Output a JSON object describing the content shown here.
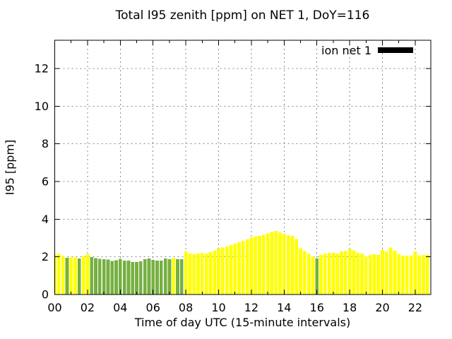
{
  "colors": {
    "bar_yellow": "#ffff00",
    "bar_green": "#76b041",
    "legend_swatch": "#000000",
    "grid": "#8a8a8a",
    "border": "#000000",
    "background": "#ffffff",
    "text": "#000000"
  },
  "chart_data": {
    "type": "bar",
    "title": "Total I95 zenith [ppm] on NET 1, DoY=116",
    "xlabel": "Time of day UTC (15-minute intervals)",
    "ylabel": "I95 [ppm]",
    "legend_label": "ion net 1",
    "legend_position": "top-right",
    "grid": true,
    "ylim": [
      0,
      13.5
    ],
    "yticks": [
      "0",
      "2",
      "4",
      "6",
      "8",
      "10",
      "12"
    ],
    "xticks": [
      "00",
      "02",
      "04",
      "06",
      "08",
      "10",
      "12",
      "14",
      "16",
      "18",
      "20",
      "22"
    ],
    "interval_minutes": 15,
    "times": [
      "00:00",
      "00:15",
      "00:30",
      "00:45",
      "01:00",
      "01:15",
      "01:30",
      "01:45",
      "02:00",
      "02:15",
      "02:30",
      "02:45",
      "03:00",
      "03:15",
      "03:30",
      "03:45",
      "04:00",
      "04:15",
      "04:30",
      "04:45",
      "05:00",
      "05:15",
      "05:30",
      "05:45",
      "06:00",
      "06:15",
      "06:30",
      "06:45",
      "07:00",
      "07:15",
      "07:30",
      "07:45",
      "08:00",
      "08:15",
      "08:30",
      "08:45",
      "09:00",
      "09:15",
      "09:30",
      "09:45",
      "10:00",
      "10:15",
      "10:30",
      "10:45",
      "11:00",
      "11:15",
      "11:30",
      "11:45",
      "12:00",
      "12:15",
      "12:30",
      "12:45",
      "13:00",
      "13:15",
      "13:30",
      "13:45",
      "14:00",
      "14:15",
      "14:30",
      "14:45",
      "15:00",
      "15:15",
      "15:30",
      "15:45",
      "16:00",
      "16:15",
      "16:30",
      "16:45",
      "17:00",
      "17:15",
      "17:30",
      "17:45",
      "18:00",
      "18:15",
      "18:30",
      "18:45",
      "19:00",
      "19:15",
      "19:30",
      "19:45",
      "20:00",
      "20:15",
      "20:30",
      "20:45",
      "21:00",
      "21:15",
      "21:30",
      "21:45",
      "22:00",
      "22:15",
      "22:30",
      "22:45"
    ],
    "values": [
      2.1,
      2.15,
      2.06,
      1.95,
      1.97,
      1.97,
      1.92,
      2.05,
      2.14,
      1.98,
      1.94,
      1.9,
      1.88,
      1.85,
      1.78,
      1.82,
      1.9,
      1.8,
      1.8,
      1.72,
      1.72,
      1.76,
      1.87,
      1.91,
      1.84,
      1.8,
      1.8,
      1.91,
      1.87,
      1.95,
      1.87,
      1.88,
      2.28,
      2.18,
      2.13,
      2.17,
      2.21,
      2.17,
      2.25,
      2.32,
      2.43,
      2.5,
      2.55,
      2.62,
      2.7,
      2.77,
      2.85,
      2.92,
      3.02,
      3.1,
      3.12,
      3.16,
      3.25,
      3.32,
      3.37,
      3.3,
      3.22,
      3.15,
      3.12,
      2.95,
      2.45,
      2.3,
      2.15,
      2.0,
      1.92,
      2.1,
      2.17,
      2.21,
      2.21,
      2.17,
      2.28,
      2.3,
      2.42,
      2.32,
      2.21,
      2.17,
      2.02,
      2.1,
      2.13,
      2.1,
      2.36,
      2.28,
      2.5,
      2.32,
      2.13,
      2.06,
      2.06,
      2.06,
      2.28,
      2.06,
      2.1,
      2.1
    ],
    "bar_colors": [
      "yellow",
      "yellow",
      "yellow",
      "green",
      "yellow",
      "yellow",
      "green",
      "yellow",
      "yellow",
      "green",
      "green",
      "green",
      "green",
      "green",
      "green",
      "green",
      "green",
      "green",
      "green",
      "green",
      "green",
      "green",
      "green",
      "green",
      "green",
      "green",
      "green",
      "green",
      "green",
      "yellow",
      "green",
      "green",
      "yellow",
      "yellow",
      "yellow",
      "yellow",
      "yellow",
      "yellow",
      "yellow",
      "yellow",
      "yellow",
      "yellow",
      "yellow",
      "yellow",
      "yellow",
      "yellow",
      "yellow",
      "yellow",
      "yellow",
      "yellow",
      "yellow",
      "yellow",
      "yellow",
      "yellow",
      "yellow",
      "yellow",
      "yellow",
      "yellow",
      "yellow",
      "yellow",
      "yellow",
      "yellow",
      "yellow",
      "yellow",
      "green",
      "yellow",
      "yellow",
      "yellow",
      "yellow",
      "yellow",
      "yellow",
      "yellow",
      "yellow",
      "yellow",
      "yellow",
      "yellow",
      "yellow",
      "yellow",
      "yellow",
      "yellow",
      "yellow",
      "yellow",
      "yellow",
      "yellow",
      "yellow",
      "yellow",
      "yellow",
      "yellow",
      "yellow",
      "yellow",
      "yellow",
      "yellow"
    ]
  }
}
